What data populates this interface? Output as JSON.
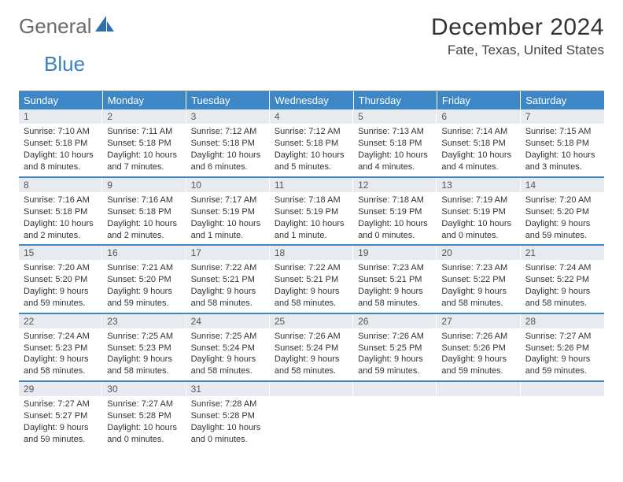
{
  "logo": {
    "part1": "General",
    "part2": "Blue"
  },
  "title": "December 2024",
  "location": "Fate, Texas, United States",
  "colors": {
    "header_bg": "#3d87c7",
    "header_text": "#ffffff",
    "daynum_bg": "#e7ebef",
    "border_accent": "#3d87c7",
    "text": "#333333",
    "logo_general": "#6a6a6a",
    "logo_blue": "#3b7fc4"
  },
  "day_headers": [
    "Sunday",
    "Monday",
    "Tuesday",
    "Wednesday",
    "Thursday",
    "Friday",
    "Saturday"
  ],
  "weeks": [
    [
      {
        "n": "1",
        "sunrise": "Sunrise: 7:10 AM",
        "sunset": "Sunset: 5:18 PM",
        "daylight": "Daylight: 10 hours and 8 minutes."
      },
      {
        "n": "2",
        "sunrise": "Sunrise: 7:11 AM",
        "sunset": "Sunset: 5:18 PM",
        "daylight": "Daylight: 10 hours and 7 minutes."
      },
      {
        "n": "3",
        "sunrise": "Sunrise: 7:12 AM",
        "sunset": "Sunset: 5:18 PM",
        "daylight": "Daylight: 10 hours and 6 minutes."
      },
      {
        "n": "4",
        "sunrise": "Sunrise: 7:12 AM",
        "sunset": "Sunset: 5:18 PM",
        "daylight": "Daylight: 10 hours and 5 minutes."
      },
      {
        "n": "5",
        "sunrise": "Sunrise: 7:13 AM",
        "sunset": "Sunset: 5:18 PM",
        "daylight": "Daylight: 10 hours and 4 minutes."
      },
      {
        "n": "6",
        "sunrise": "Sunrise: 7:14 AM",
        "sunset": "Sunset: 5:18 PM",
        "daylight": "Daylight: 10 hours and 4 minutes."
      },
      {
        "n": "7",
        "sunrise": "Sunrise: 7:15 AM",
        "sunset": "Sunset: 5:18 PM",
        "daylight": "Daylight: 10 hours and 3 minutes."
      }
    ],
    [
      {
        "n": "8",
        "sunrise": "Sunrise: 7:16 AM",
        "sunset": "Sunset: 5:18 PM",
        "daylight": "Daylight: 10 hours and 2 minutes."
      },
      {
        "n": "9",
        "sunrise": "Sunrise: 7:16 AM",
        "sunset": "Sunset: 5:18 PM",
        "daylight": "Daylight: 10 hours and 2 minutes."
      },
      {
        "n": "10",
        "sunrise": "Sunrise: 7:17 AM",
        "sunset": "Sunset: 5:19 PM",
        "daylight": "Daylight: 10 hours and 1 minute."
      },
      {
        "n": "11",
        "sunrise": "Sunrise: 7:18 AM",
        "sunset": "Sunset: 5:19 PM",
        "daylight": "Daylight: 10 hours and 1 minute."
      },
      {
        "n": "12",
        "sunrise": "Sunrise: 7:18 AM",
        "sunset": "Sunset: 5:19 PM",
        "daylight": "Daylight: 10 hours and 0 minutes."
      },
      {
        "n": "13",
        "sunrise": "Sunrise: 7:19 AM",
        "sunset": "Sunset: 5:19 PM",
        "daylight": "Daylight: 10 hours and 0 minutes."
      },
      {
        "n": "14",
        "sunrise": "Sunrise: 7:20 AM",
        "sunset": "Sunset: 5:20 PM",
        "daylight": "Daylight: 9 hours and 59 minutes."
      }
    ],
    [
      {
        "n": "15",
        "sunrise": "Sunrise: 7:20 AM",
        "sunset": "Sunset: 5:20 PM",
        "daylight": "Daylight: 9 hours and 59 minutes."
      },
      {
        "n": "16",
        "sunrise": "Sunrise: 7:21 AM",
        "sunset": "Sunset: 5:20 PM",
        "daylight": "Daylight: 9 hours and 59 minutes."
      },
      {
        "n": "17",
        "sunrise": "Sunrise: 7:22 AM",
        "sunset": "Sunset: 5:21 PM",
        "daylight": "Daylight: 9 hours and 58 minutes."
      },
      {
        "n": "18",
        "sunrise": "Sunrise: 7:22 AM",
        "sunset": "Sunset: 5:21 PM",
        "daylight": "Daylight: 9 hours and 58 minutes."
      },
      {
        "n": "19",
        "sunrise": "Sunrise: 7:23 AM",
        "sunset": "Sunset: 5:21 PM",
        "daylight": "Daylight: 9 hours and 58 minutes."
      },
      {
        "n": "20",
        "sunrise": "Sunrise: 7:23 AM",
        "sunset": "Sunset: 5:22 PM",
        "daylight": "Daylight: 9 hours and 58 minutes."
      },
      {
        "n": "21",
        "sunrise": "Sunrise: 7:24 AM",
        "sunset": "Sunset: 5:22 PM",
        "daylight": "Daylight: 9 hours and 58 minutes."
      }
    ],
    [
      {
        "n": "22",
        "sunrise": "Sunrise: 7:24 AM",
        "sunset": "Sunset: 5:23 PM",
        "daylight": "Daylight: 9 hours and 58 minutes."
      },
      {
        "n": "23",
        "sunrise": "Sunrise: 7:25 AM",
        "sunset": "Sunset: 5:23 PM",
        "daylight": "Daylight: 9 hours and 58 minutes."
      },
      {
        "n": "24",
        "sunrise": "Sunrise: 7:25 AM",
        "sunset": "Sunset: 5:24 PM",
        "daylight": "Daylight: 9 hours and 58 minutes."
      },
      {
        "n": "25",
        "sunrise": "Sunrise: 7:26 AM",
        "sunset": "Sunset: 5:24 PM",
        "daylight": "Daylight: 9 hours and 58 minutes."
      },
      {
        "n": "26",
        "sunrise": "Sunrise: 7:26 AM",
        "sunset": "Sunset: 5:25 PM",
        "daylight": "Daylight: 9 hours and 59 minutes."
      },
      {
        "n": "27",
        "sunrise": "Sunrise: 7:26 AM",
        "sunset": "Sunset: 5:26 PM",
        "daylight": "Daylight: 9 hours and 59 minutes."
      },
      {
        "n": "28",
        "sunrise": "Sunrise: 7:27 AM",
        "sunset": "Sunset: 5:26 PM",
        "daylight": "Daylight: 9 hours and 59 minutes."
      }
    ],
    [
      {
        "n": "29",
        "sunrise": "Sunrise: 7:27 AM",
        "sunset": "Sunset: 5:27 PM",
        "daylight": "Daylight: 9 hours and 59 minutes."
      },
      {
        "n": "30",
        "sunrise": "Sunrise: 7:27 AM",
        "sunset": "Sunset: 5:28 PM",
        "daylight": "Daylight: 10 hours and 0 minutes."
      },
      {
        "n": "31",
        "sunrise": "Sunrise: 7:28 AM",
        "sunset": "Sunset: 5:28 PM",
        "daylight": "Daylight: 10 hours and 0 minutes."
      },
      null,
      null,
      null,
      null
    ]
  ]
}
